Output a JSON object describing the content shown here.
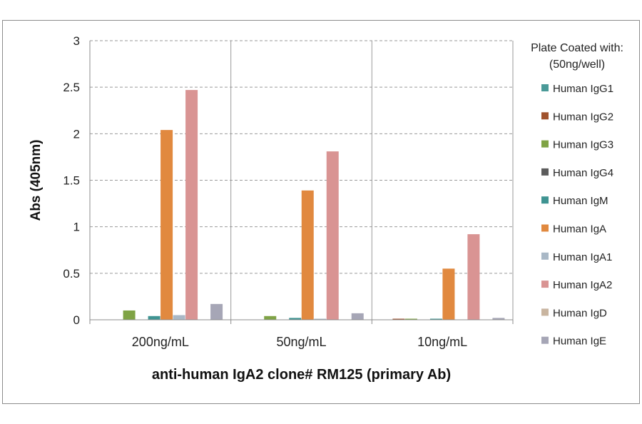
{
  "chart_data": {
    "type": "bar",
    "title": "",
    "xlabel": "anti-human IgA2 clone# RM125 (primary Ab)",
    "ylabel": "Abs (405nm)",
    "ylim": [
      0,
      3
    ],
    "yticks": [
      "0",
      "0.5",
      "1",
      "1.5",
      "2",
      "2.5",
      "3"
    ],
    "grid": true,
    "legend_position": "right",
    "legend_title": [
      "Plate Coated with:",
      "(50ng/well)"
    ],
    "categories": [
      "200ng/mL",
      "50ng/mL",
      "10ng/mL"
    ],
    "series": [
      {
        "name": "Human IgG1",
        "color": "#4a9a98",
        "values": [
          0,
          0,
          0
        ]
      },
      {
        "name": "Human IgG2",
        "color": "#a0522d",
        "values": [
          0,
          0,
          0.01
        ]
      },
      {
        "name": "Human IgG3",
        "color": "#7fa345",
        "values": [
          0.1,
          0.04,
          0.01
        ]
      },
      {
        "name": "Human IgG4",
        "color": "#5c5c5c",
        "values": [
          0,
          0,
          0
        ]
      },
      {
        "name": "Human IgM",
        "color": "#3f9492",
        "values": [
          0.04,
          0.02,
          0.01
        ]
      },
      {
        "name": "Human IgA",
        "color": "#e1893f",
        "values": [
          2.04,
          1.39,
          0.55
        ]
      },
      {
        "name": "Human IgA1",
        "color": "#a9b8c6",
        "values": [
          0.05,
          0.01,
          0
        ]
      },
      {
        "name": "Human IgA2",
        "color": "#d99493",
        "values": [
          2.47,
          1.81,
          0.92
        ]
      },
      {
        "name": "Human IgD",
        "color": "#c9b5a0",
        "values": [
          0,
          0,
          0
        ]
      },
      {
        "name": "Human IgE",
        "color": "#a6a6b6",
        "values": [
          0.17,
          0.07,
          0.02
        ]
      }
    ]
  }
}
